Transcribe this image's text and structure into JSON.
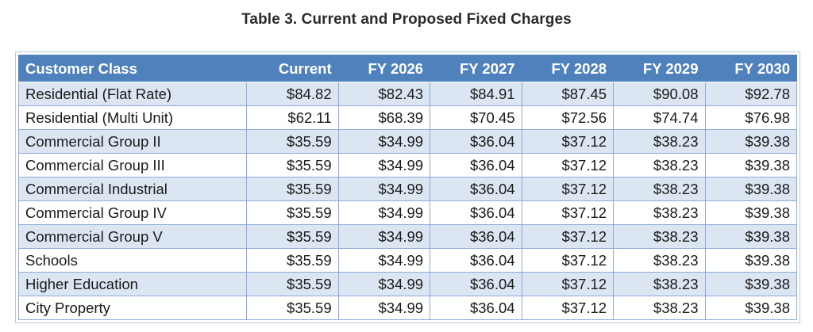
{
  "title": "Table 3. Current and Proposed Fixed Charges",
  "table": {
    "columns": [
      "Customer Class",
      "Current",
      "FY 2026",
      "FY 2027",
      "FY 2028",
      "FY 2029",
      "FY 2030"
    ],
    "rows": [
      [
        "Residential (Flat Rate)",
        "$84.82",
        "$82.43",
        "$84.91",
        "$87.45",
        "$90.08",
        "$92.78"
      ],
      [
        "Residential (Multi Unit)",
        "$62.11",
        "$68.39",
        "$70.45",
        "$72.56",
        "$74.74",
        "$76.98"
      ],
      [
        "Commercial Group II",
        "$35.59",
        "$34.99",
        "$36.04",
        "$37.12",
        "$38.23",
        "$39.38"
      ],
      [
        "Commercial Group III",
        "$35.59",
        "$34.99",
        "$36.04",
        "$37.12",
        "$38.23",
        "$39.38"
      ],
      [
        "Commercial Industrial",
        "$35.59",
        "$34.99",
        "$36.04",
        "$37.12",
        "$38.23",
        "$39.38"
      ],
      [
        "Commercial Group IV",
        "$35.59",
        "$34.99",
        "$36.04",
        "$37.12",
        "$38.23",
        "$39.38"
      ],
      [
        "Commercial Group V",
        "$35.59",
        "$34.99",
        "$36.04",
        "$37.12",
        "$38.23",
        "$39.38"
      ],
      [
        "Schools",
        "$35.59",
        "$34.99",
        "$36.04",
        "$37.12",
        "$38.23",
        "$39.38"
      ],
      [
        "Higher Education",
        "$35.59",
        "$34.99",
        "$36.04",
        "$37.12",
        "$38.23",
        "$39.38"
      ],
      [
        "City Property",
        "$35.59",
        "$34.99",
        "$36.04",
        "$37.12",
        "$38.23",
        "$39.38"
      ]
    ]
  },
  "colors": {
    "header_bg": "#4f81bd",
    "header_text": "#ffffff",
    "band_row": "#dce6f2",
    "plain_row": "#ffffff",
    "grid": "#8eaadb"
  }
}
